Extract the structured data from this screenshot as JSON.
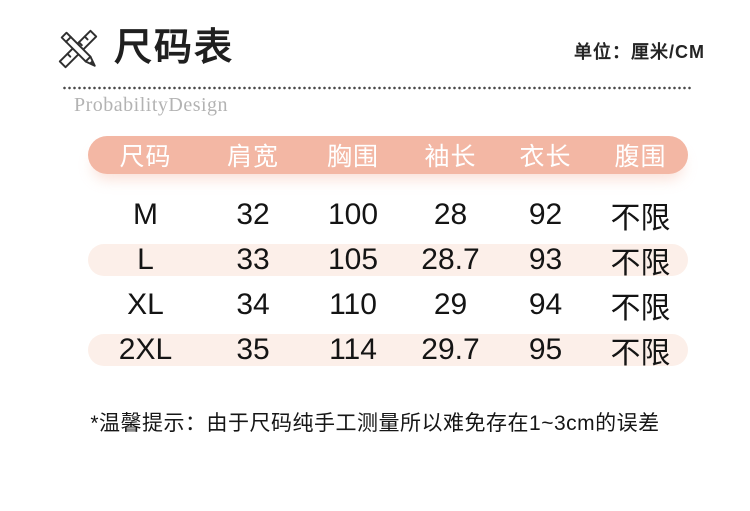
{
  "header": {
    "title": "尺码表",
    "unit_label": "单位：厘米/CM",
    "watermark": "ProbabilityDesign"
  },
  "table": {
    "columns": [
      "尺码",
      "肩宽",
      "胸围",
      "袖长",
      "衣长",
      "腹围"
    ],
    "rows": [
      [
        "M",
        "32",
        "100",
        "28",
        "92",
        "不限"
      ],
      [
        "L",
        "33",
        "105",
        "28.7",
        "93",
        "不限"
      ],
      [
        "XL",
        "34",
        "110",
        "29",
        "94",
        "不限"
      ],
      [
        "2XL",
        "35",
        "114",
        "29.7",
        "95",
        "不限"
      ]
    ],
    "striped_rows": [
      1,
      3
    ]
  },
  "footer": {
    "note": "*温馨提示：由于尺码纯手工测量所以难免存在1~3cm的误差"
  },
  "colors": {
    "header_pill": "#f3b7a4",
    "row_stripe": "#fcefe9",
    "header_text": "#ffffff",
    "body_text": "#1a1a1a",
    "watermark": "#b3b3b3",
    "dots": "#4a4a4a"
  }
}
